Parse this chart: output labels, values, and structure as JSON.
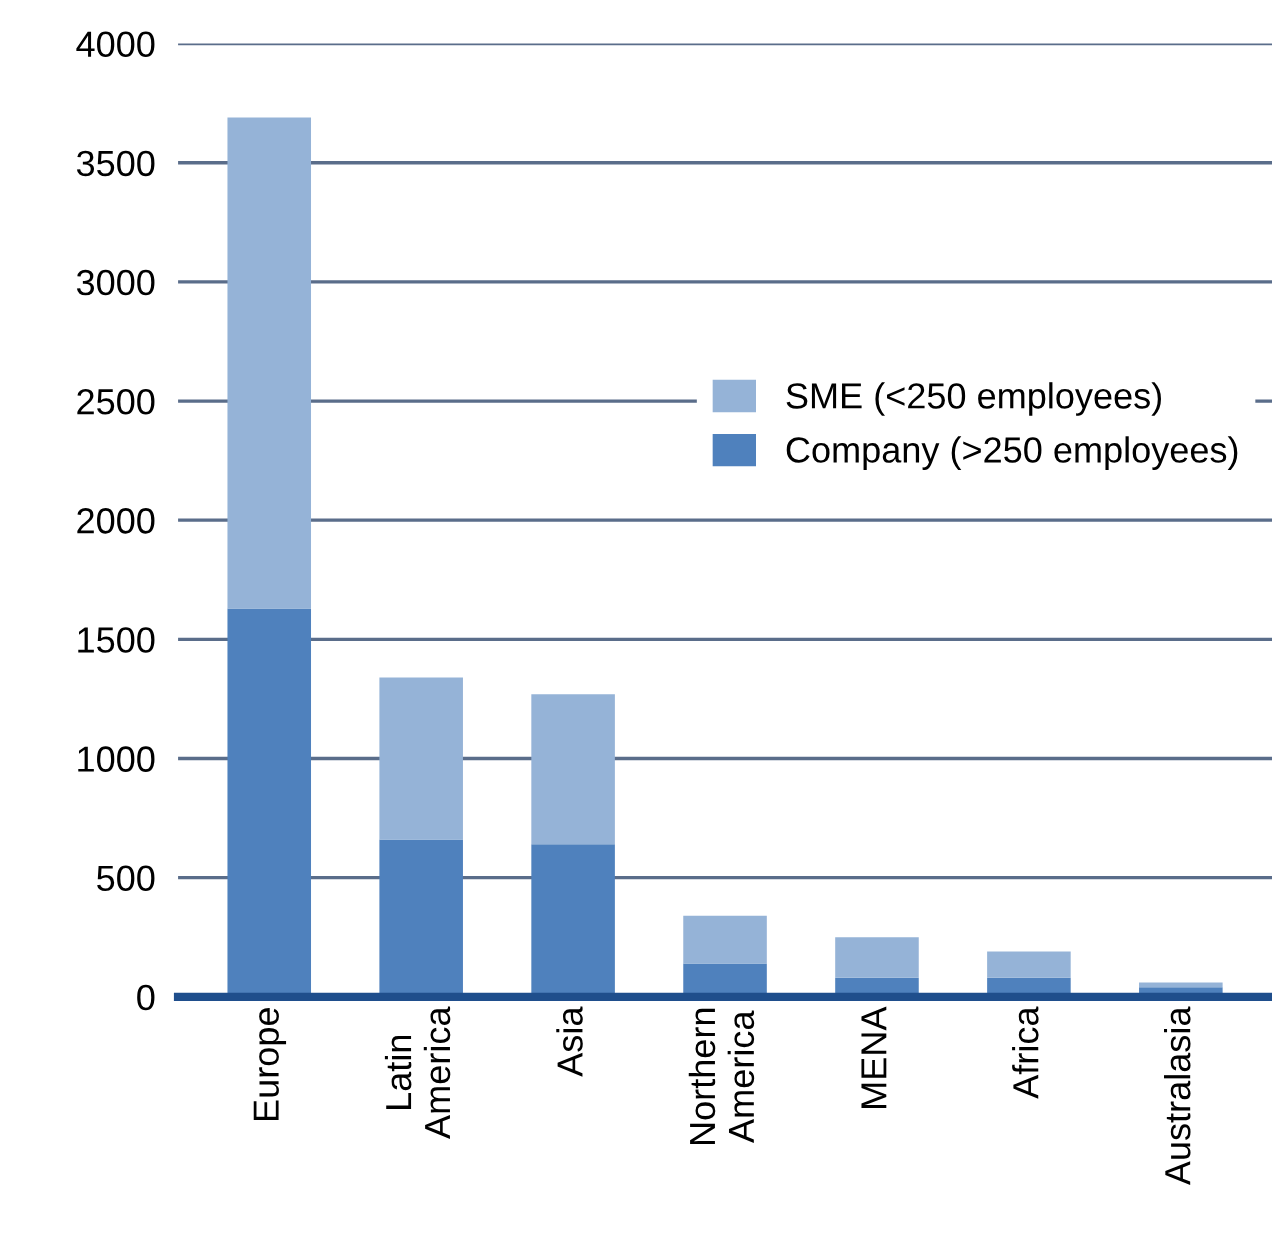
{
  "chart_data": {
    "type": "bar",
    "stacked": true,
    "categories": [
      "Europe",
      "Latin\nAmerica",
      "Asia",
      "Northern\nAmerica",
      "MENA",
      "Africa",
      "Australasia"
    ],
    "series": [
      {
        "name": "Company (>250 employees)",
        "color": "#4f81bd",
        "values": [
          1630,
          660,
          640,
          140,
          80,
          80,
          40
        ]
      },
      {
        "name": "SME (<250 employees)",
        "color": "#95b3d7",
        "values": [
          2060,
          680,
          630,
          200,
          170,
          110,
          20
        ]
      }
    ],
    "ylim": [
      0,
      4000
    ],
    "yticks": [
      0,
      500,
      1000,
      1500,
      2000,
      2500,
      3000,
      3500,
      4000
    ],
    "grid": "y",
    "legend": "right"
  }
}
